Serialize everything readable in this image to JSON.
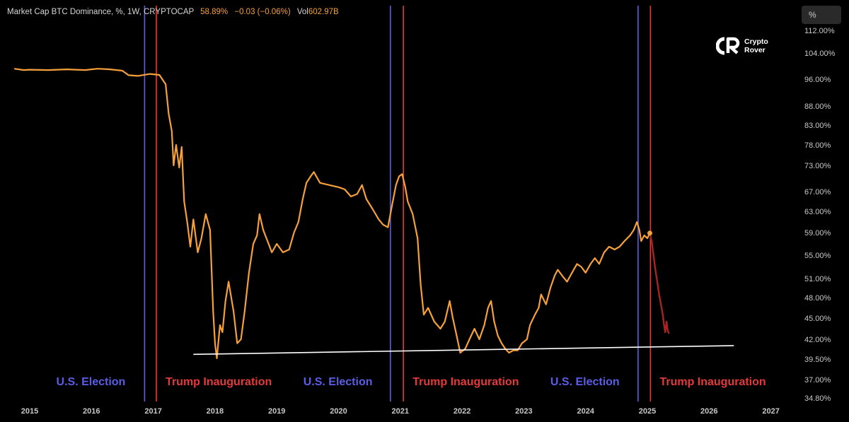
{
  "header": {
    "title": "Market Cap BTC Dominance, %, 1W, CRYPTOCAP",
    "last_value": "58.89%",
    "change": "−0.03 (−0.06%)",
    "volume_label": "Vol",
    "volume_value": "602.97B"
  },
  "scale_button": "%",
  "logo": {
    "line1": "Crypto",
    "line2": "Rover",
    "icon": "crypto-rover-logo-icon"
  },
  "chart_data": {
    "type": "line",
    "x_ticks": [
      "2015",
      "2016",
      "2017",
      "2018",
      "2019",
      "2020",
      "2021",
      "2022",
      "2023",
      "2024",
      "2025",
      "2026",
      "2027"
    ],
    "y_ticks": [
      "112.00%",
      "104.00%",
      "96.00%",
      "88.00%",
      "83.00%",
      "78.00%",
      "73.00%",
      "67.00%",
      "63.00%",
      "59.00%",
      "55.00%",
      "51.00%",
      "48.00%",
      "45.00%",
      "42.00%",
      "39.50%",
      "37.00%",
      "34.80%"
    ],
    "y_values": [
      112,
      104,
      96,
      88,
      83,
      78,
      73,
      67,
      63,
      59,
      55,
      51,
      48,
      45,
      42,
      39.5,
      37,
      34.8
    ],
    "ylim": [
      34.8,
      112
    ],
    "xlim": [
      2014.7,
      2027.3
    ],
    "series": [
      {
        "color": "#f5a03b",
        "points": [
          [
            2014.75,
            99.2
          ],
          [
            2014.9,
            98.8
          ],
          [
            2015.0,
            98.9
          ],
          [
            2015.3,
            98.8
          ],
          [
            2015.6,
            99.0
          ],
          [
            2015.9,
            98.8
          ],
          [
            2016.1,
            99.2
          ],
          [
            2016.3,
            99.0
          ],
          [
            2016.5,
            98.6
          ],
          [
            2016.6,
            97.2
          ],
          [
            2016.75,
            97.0
          ],
          [
            2016.95,
            97.6
          ],
          [
            2017.1,
            97.3
          ],
          [
            2017.2,
            94.5
          ],
          [
            2017.25,
            86.0
          ],
          [
            2017.3,
            81.5
          ],
          [
            2017.33,
            73.0
          ],
          [
            2017.37,
            78.0
          ],
          [
            2017.42,
            72.5
          ],
          [
            2017.46,
            77.5
          ],
          [
            2017.5,
            65.0
          ],
          [
            2017.55,
            61.0
          ],
          [
            2017.6,
            56.5
          ],
          [
            2017.65,
            61.5
          ],
          [
            2017.72,
            55.5
          ],
          [
            2017.78,
            58.0
          ],
          [
            2017.85,
            62.5
          ],
          [
            2017.92,
            59.5
          ],
          [
            2017.97,
            46.0
          ],
          [
            2018.0,
            41.5
          ],
          [
            2018.03,
            39.6
          ],
          [
            2018.08,
            44.0
          ],
          [
            2018.12,
            43.0
          ],
          [
            2018.17,
            47.5
          ],
          [
            2018.22,
            50.5
          ],
          [
            2018.3,
            46.0
          ],
          [
            2018.36,
            41.5
          ],
          [
            2018.42,
            42.0
          ],
          [
            2018.48,
            46.0
          ],
          [
            2018.55,
            52.0
          ],
          [
            2018.62,
            57.0
          ],
          [
            2018.68,
            58.5
          ],
          [
            2018.72,
            62.5
          ],
          [
            2018.78,
            59.5
          ],
          [
            2018.85,
            57.5
          ],
          [
            2018.92,
            55.5
          ],
          [
            2019.0,
            57.0
          ],
          [
            2019.1,
            55.5
          ],
          [
            2019.2,
            56.0
          ],
          [
            2019.28,
            59.0
          ],
          [
            2019.35,
            61.0
          ],
          [
            2019.42,
            65.5
          ],
          [
            2019.48,
            69.0
          ],
          [
            2019.55,
            70.5
          ],
          [
            2019.6,
            71.5
          ],
          [
            2019.7,
            69.0
          ],
          [
            2019.85,
            68.5
          ],
          [
            2020.0,
            68.0
          ],
          [
            2020.1,
            67.5
          ],
          [
            2020.2,
            66.0
          ],
          [
            2020.3,
            66.5
          ],
          [
            2020.38,
            68.5
          ],
          [
            2020.45,
            65.5
          ],
          [
            2020.55,
            63.5
          ],
          [
            2020.65,
            61.5
          ],
          [
            2020.72,
            60.5
          ],
          [
            2020.8,
            60.0
          ],
          [
            2020.87,
            64.5
          ],
          [
            2020.93,
            68.5
          ],
          [
            2020.98,
            70.5
          ],
          [
            2021.03,
            71.0
          ],
          [
            2021.08,
            68.0
          ],
          [
            2021.12,
            65.0
          ],
          [
            2021.2,
            62.5
          ],
          [
            2021.28,
            58.0
          ],
          [
            2021.33,
            50.0
          ],
          [
            2021.38,
            45.5
          ],
          [
            2021.45,
            46.5
          ],
          [
            2021.55,
            44.5
          ],
          [
            2021.65,
            43.5
          ],
          [
            2021.72,
            44.5
          ],
          [
            2021.8,
            47.5
          ],
          [
            2021.85,
            45.0
          ],
          [
            2021.9,
            43.0
          ],
          [
            2021.97,
            40.3
          ],
          [
            2022.05,
            40.8
          ],
          [
            2022.12,
            42.0
          ],
          [
            2022.2,
            43.5
          ],
          [
            2022.28,
            42.0
          ],
          [
            2022.36,
            44.0
          ],
          [
            2022.42,
            46.5
          ],
          [
            2022.47,
            47.5
          ],
          [
            2022.52,
            44.5
          ],
          [
            2022.58,
            42.5
          ],
          [
            2022.64,
            41.5
          ],
          [
            2022.7,
            40.8
          ],
          [
            2022.76,
            40.3
          ],
          [
            2022.83,
            40.6
          ],
          [
            2022.9,
            40.6
          ],
          [
            2022.97,
            41.5
          ],
          [
            2023.05,
            42.0
          ],
          [
            2023.1,
            44.0
          ],
          [
            2023.18,
            45.5
          ],
          [
            2023.24,
            46.5
          ],
          [
            2023.28,
            48.5
          ],
          [
            2023.36,
            47.0
          ],
          [
            2023.43,
            49.5
          ],
          [
            2023.5,
            51.5
          ],
          [
            2023.55,
            52.5
          ],
          [
            2023.62,
            51.5
          ],
          [
            2023.7,
            50.5
          ],
          [
            2023.78,
            52.0
          ],
          [
            2023.86,
            53.5
          ],
          [
            2023.93,
            53.0
          ],
          [
            2024.0,
            52.0
          ],
          [
            2024.08,
            53.5
          ],
          [
            2024.15,
            54.5
          ],
          [
            2024.22,
            53.5
          ],
          [
            2024.3,
            55.5
          ],
          [
            2024.38,
            56.5
          ],
          [
            2024.47,
            56.0
          ],
          [
            2024.55,
            56.5
          ],
          [
            2024.63,
            57.5
          ],
          [
            2024.72,
            58.5
          ],
          [
            2024.78,
            59.5
          ],
          [
            2024.83,
            61.0
          ],
          [
            2024.87,
            59.5
          ],
          [
            2024.9,
            57.5
          ],
          [
            2024.95,
            58.5
          ],
          [
            2025.0,
            58.0
          ],
          [
            2025.04,
            58.9
          ]
        ]
      },
      {
        "color": "#a52525",
        "points": [
          [
            2025.04,
            58.9
          ],
          [
            2025.07,
            57.5
          ],
          [
            2025.1,
            55.0
          ],
          [
            2025.13,
            52.5
          ],
          [
            2025.16,
            50.5
          ],
          [
            2025.19,
            48.5
          ],
          [
            2025.22,
            47.0
          ],
          [
            2025.25,
            45.5
          ],
          [
            2025.27,
            44.0
          ],
          [
            2025.29,
            43.0
          ],
          [
            2025.31,
            44.5
          ],
          [
            2025.33,
            43.2
          ],
          [
            2025.35,
            42.8
          ]
        ]
      }
    ],
    "trendline": {
      "color": "#ffffff",
      "from": [
        2017.65,
        40.1
      ],
      "to": [
        2026.4,
        41.2
      ]
    },
    "vertical_lines": [
      {
        "x": 2016.86,
        "color": "#5a5ee6"
      },
      {
        "x": 2017.05,
        "color": "#e43a3a"
      },
      {
        "x": 2020.84,
        "color": "#5a5ee6"
      },
      {
        "x": 2021.05,
        "color": "#e43a3a"
      },
      {
        "x": 2024.85,
        "color": "#5a5ee6"
      },
      {
        "x": 2025.05,
        "color": "#e43a3a"
      }
    ],
    "annotations": [
      {
        "text": "U.S. Election",
        "x": 2016.55,
        "color": "#5a5ee6",
        "anchor": "end"
      },
      {
        "text": "Trump Inauguration",
        "x": 2017.2,
        "color": "#e43a3a",
        "anchor": "start"
      },
      {
        "text": "U.S. Election",
        "x": 2020.55,
        "color": "#5a5ee6",
        "anchor": "end"
      },
      {
        "text": "Trump Inauguration",
        "x": 2021.2,
        "color": "#e43a3a",
        "anchor": "start"
      },
      {
        "text": "U.S. Election",
        "x": 2024.55,
        "color": "#5a5ee6",
        "anchor": "end"
      },
      {
        "text": "Trump Inauguration",
        "x": 2025.2,
        "color": "#e43a3a",
        "anchor": "start"
      }
    ],
    "current_point": {
      "x": 2025.04,
      "y": 58.9
    }
  }
}
